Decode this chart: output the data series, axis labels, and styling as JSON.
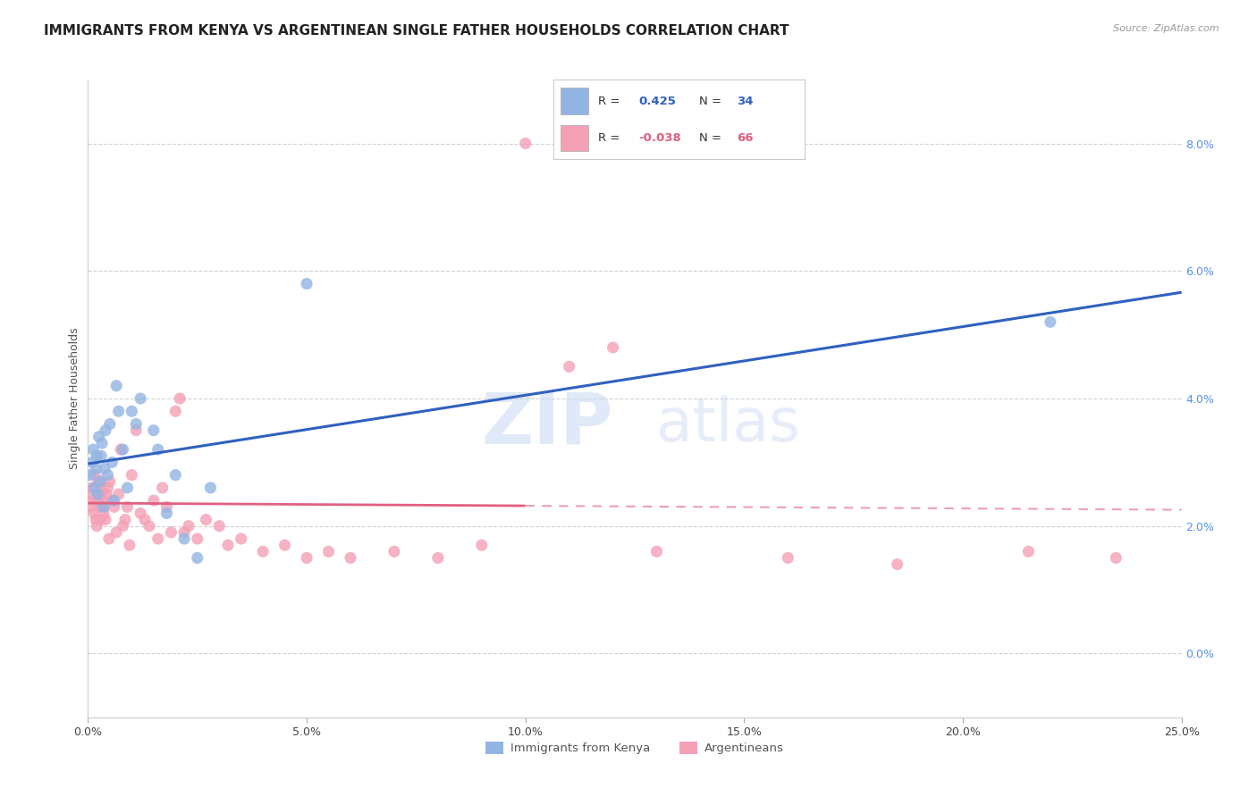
{
  "title": "IMMIGRANTS FROM KENYA VS ARGENTINEAN SINGLE FATHER HOUSEHOLDS CORRELATION CHART",
  "source": "Source: ZipAtlas.com",
  "xlabel_vals": [
    0.0,
    5.0,
    10.0,
    15.0,
    20.0,
    25.0
  ],
  "ylabel_vals": [
    0.0,
    2.0,
    4.0,
    6.0,
    8.0
  ],
  "xlim": [
    0.0,
    25.0
  ],
  "ylim": [
    -1.0,
    9.0
  ],
  "blue_R": 0.425,
  "blue_N": 34,
  "pink_R": -0.038,
  "pink_N": 66,
  "blue_color": "#92b4e3",
  "pink_color": "#f4a0b5",
  "blue_line_color": "#3060c0",
  "pink_line_color": "#e06080",
  "watermark_part1": "ZIP",
  "watermark_part2": "atlas",
  "legend_label_blue": "Immigrants from Kenya",
  "legend_label_pink": "Argentineans",
  "ylabel": "Single Father Households",
  "blue_x": [
    0.05,
    0.1,
    0.12,
    0.15,
    0.18,
    0.2,
    0.22,
    0.25,
    0.28,
    0.3,
    0.32,
    0.35,
    0.38,
    0.4,
    0.45,
    0.5,
    0.55,
    0.6,
    0.65,
    0.7,
    0.8,
    0.9,
    1.0,
    1.1,
    1.2,
    1.5,
    1.6,
    1.8,
    2.0,
    2.2,
    2.5,
    2.8,
    5.0,
    22.0
  ],
  "blue_y": [
    2.8,
    3.0,
    3.2,
    2.6,
    2.9,
    3.1,
    2.5,
    3.4,
    2.7,
    3.1,
    3.3,
    2.3,
    2.9,
    3.5,
    2.8,
    3.6,
    3.0,
    2.4,
    4.2,
    3.8,
    3.2,
    2.6,
    3.8,
    3.6,
    4.0,
    3.5,
    3.2,
    2.2,
    2.8,
    1.8,
    1.5,
    2.6,
    5.8,
    5.2
  ],
  "pink_x": [
    0.05,
    0.08,
    0.1,
    0.12,
    0.14,
    0.16,
    0.18,
    0.2,
    0.22,
    0.24,
    0.26,
    0.28,
    0.3,
    0.32,
    0.34,
    0.36,
    0.38,
    0.4,
    0.42,
    0.45,
    0.48,
    0.5,
    0.55,
    0.6,
    0.65,
    0.7,
    0.75,
    0.8,
    0.85,
    0.9,
    0.95,
    1.0,
    1.1,
    1.2,
    1.3,
    1.4,
    1.5,
    1.6,
    1.7,
    1.8,
    1.9,
    2.0,
    2.1,
    2.2,
    2.3,
    2.5,
    2.7,
    3.0,
    3.2,
    3.5,
    4.0,
    4.5,
    5.0,
    5.5,
    6.0,
    7.0,
    8.0,
    9.0,
    10.0,
    11.0,
    12.0,
    13.0,
    16.0,
    18.5,
    21.5,
    23.5
  ],
  "pink_y": [
    2.5,
    2.3,
    2.6,
    2.4,
    2.2,
    2.8,
    2.1,
    2.0,
    2.4,
    2.7,
    2.3,
    2.1,
    2.5,
    2.6,
    2.4,
    2.2,
    2.3,
    2.1,
    2.5,
    2.6,
    1.8,
    2.7,
    2.4,
    2.3,
    1.9,
    2.5,
    3.2,
    2.0,
    2.1,
    2.3,
    1.7,
    2.8,
    3.5,
    2.2,
    2.1,
    2.0,
    2.4,
    1.8,
    2.6,
    2.3,
    1.9,
    3.8,
    4.0,
    1.9,
    2.0,
    1.8,
    2.1,
    2.0,
    1.7,
    1.8,
    1.6,
    1.7,
    1.5,
    1.6,
    1.5,
    1.6,
    1.5,
    1.7,
    8.0,
    4.5,
    4.8,
    1.6,
    1.5,
    1.4,
    1.6,
    1.5
  ],
  "grid_color": "#cccccc",
  "bg_color": "#ffffff",
  "title_fontsize": 11,
  "axis_tick_fontsize": 9
}
